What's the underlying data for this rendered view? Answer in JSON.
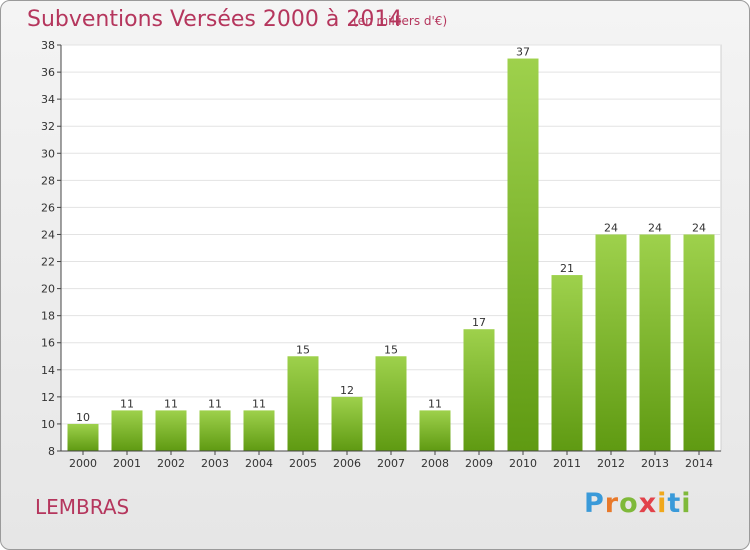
{
  "title": "Subventions Versées 2000 à 2014",
  "subtitle": "(en milliers d'€)",
  "commune": "LEMBRAS",
  "logo": {
    "letters": [
      "P",
      "r",
      "o",
      "x",
      "i",
      "t",
      "i"
    ],
    "colors": [
      "#3a9ad9",
      "#e8792a",
      "#7fb93a",
      "#e2424a",
      "#f0a81c",
      "#3a9ad9",
      "#7fb93a"
    ]
  },
  "colors": {
    "accent": "#b5365d",
    "bar_top": "#9ed14c",
    "bar_bottom": "#5f9a12"
  },
  "chart_data": {
    "type": "bar",
    "title": "Subventions Versées 2000 à 2014",
    "subtitle": "(en milliers d'€)",
    "categories": [
      "2000",
      "2001",
      "2002",
      "2003",
      "2004",
      "2005",
      "2006",
      "2007",
      "2008",
      "2009",
      "2010",
      "2011",
      "2012",
      "2013",
      "2014"
    ],
    "values": [
      10,
      11,
      11,
      11,
      11,
      15,
      12,
      15,
      11,
      17,
      37,
      21,
      24,
      24,
      24
    ],
    "ylim": [
      8,
      38
    ],
    "yticks": [
      8,
      10,
      12,
      14,
      16,
      18,
      20,
      22,
      24,
      26,
      28,
      30,
      32,
      34,
      36,
      38
    ],
    "grid": true,
    "legend": "none"
  }
}
